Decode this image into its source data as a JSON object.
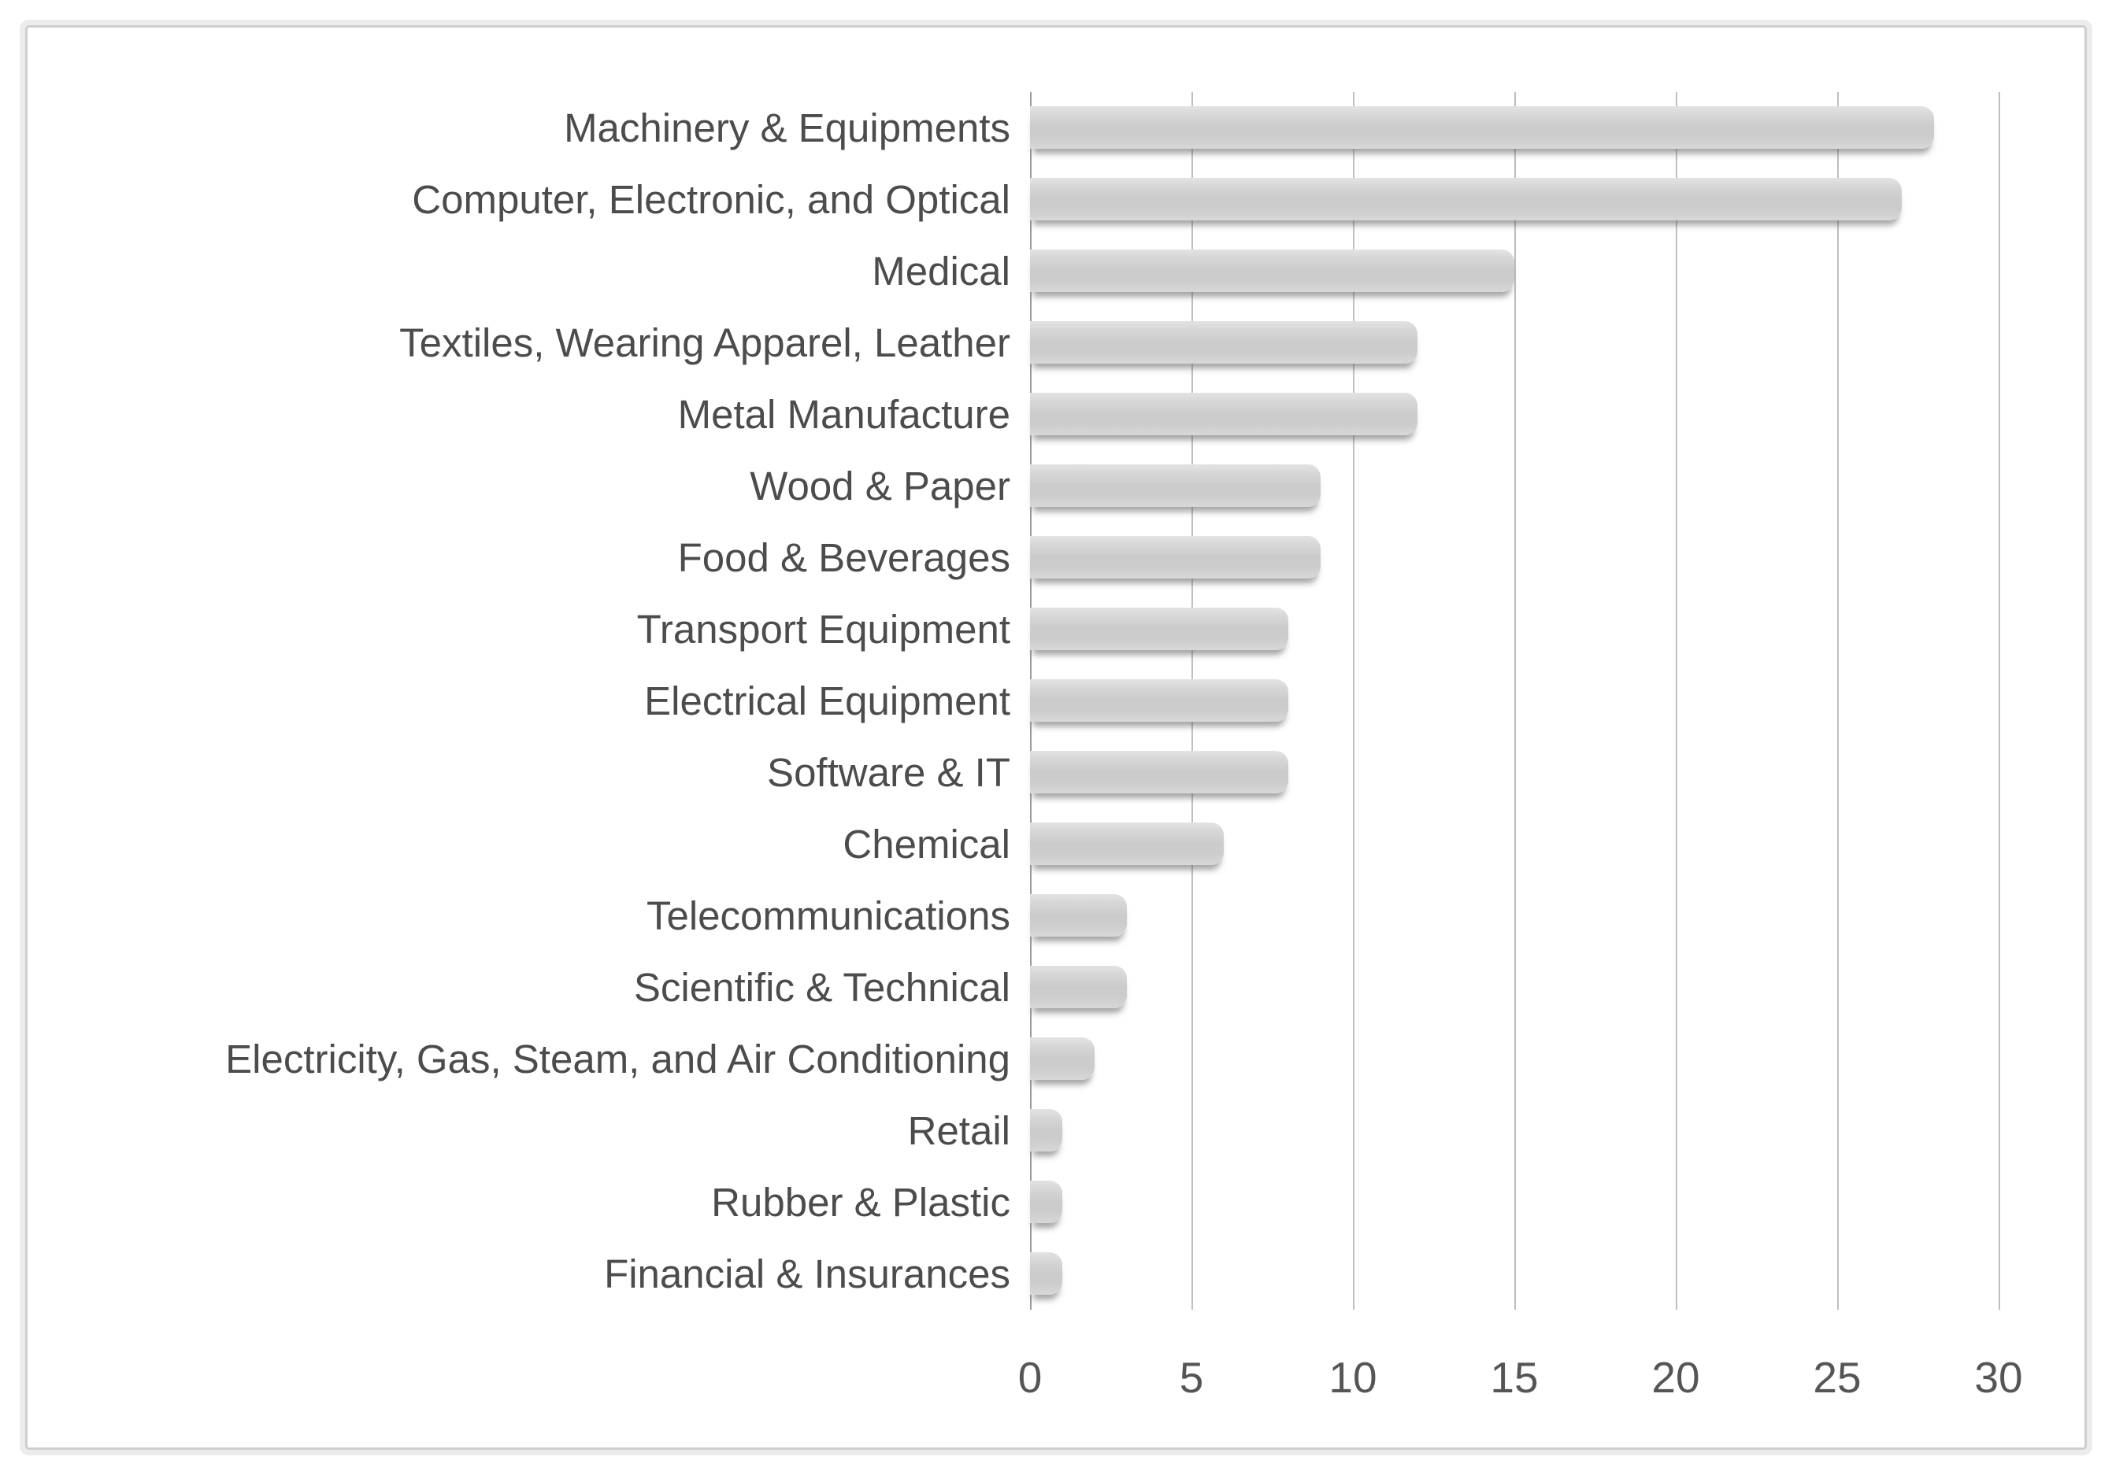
{
  "chart_data": {
    "type": "bar",
    "orientation": "horizontal",
    "title": "",
    "xlabel": "",
    "ylabel": "",
    "categories": [
      "Machinery & Equipments",
      "Computer, Electronic, and Optical",
      "Medical",
      "Textiles, Wearing Apparel, Leather",
      "Metal Manufacture",
      "Wood & Paper",
      "Food & Beverages",
      "Transport Equipment",
      "Electrical Equipment",
      "Software & IT",
      "Chemical",
      "Telecommunications",
      "Scientific & Technical",
      "Electricity, Gas, Steam, and Air Conditioning",
      "Retail",
      "Rubber & Plastic",
      "Financial & Insurances"
    ],
    "values": [
      28,
      27,
      15,
      12,
      12,
      9,
      9,
      8,
      8,
      8,
      6,
      3,
      3,
      2,
      1,
      1,
      1
    ],
    "xlim": [
      0,
      30
    ],
    "x_ticks": [
      0,
      5,
      10,
      15,
      20,
      25,
      30
    ],
    "grid": "vertical-only",
    "legend": "none",
    "colors": {
      "bar_fill": "#cdcdcd",
      "bar_shadow": "#5a5a5a",
      "gridline": "#bfbfbf",
      "axis_line": "#9b9b9b",
      "text": "#4c4c4c",
      "frame_border": "#cfcfcf",
      "frame_outer_band": "#ececec",
      "background": "#ffffff"
    }
  }
}
